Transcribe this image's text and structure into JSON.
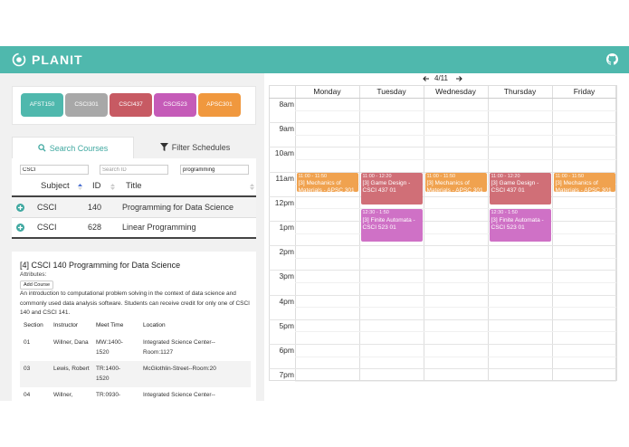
{
  "app": {
    "brand": "PLANIT"
  },
  "chips": [
    {
      "label": "AFST150",
      "color": "#4fb8ad"
    },
    {
      "label": "CSCI301",
      "color": "#a8a8a8"
    },
    {
      "label": "CSCI437",
      "color": "#c75a63"
    },
    {
      "label": "CSCI523",
      "color": "#c55bb8"
    },
    {
      "label": "APSC301",
      "color": "#f0983e"
    }
  ],
  "tabs": {
    "search": "Search Courses",
    "filter": "Filter Schedules"
  },
  "search": {
    "subject_value": "CSCI",
    "id_placeholder": "Search ID",
    "title_value": "programming",
    "columns": {
      "subject": "Subject",
      "id": "ID",
      "title": "Title"
    },
    "rows": [
      {
        "subject": "CSCI",
        "id": "140",
        "title": "Programming for Data Science"
      },
      {
        "subject": "CSCI",
        "id": "628",
        "title": "Linear Programming"
      }
    ]
  },
  "detail": {
    "title": "[4] CSCI 140 Programming for Data Science",
    "attributes_label": "Attributes:",
    "add_button": "Add Course",
    "description": "An introduction to computational problem solving in the context of data science and commonly used data analysis software. Students can receive credit for only one of CSCI 140 and CSCI 141.",
    "section_headers": {
      "section": "Section",
      "instructor": "Instructor",
      "meet": "Meet Time",
      "location": "Location"
    },
    "sections": [
      {
        "section": "01",
        "instructor": "Willner, Dana",
        "meet": "MW:1400-1520",
        "location": "Integrated Science Center--Room:1127"
      },
      {
        "section": "03",
        "instructor": "Lewis, Robert",
        "meet": "TR:1400-1520",
        "location": "McGlothlin-Street--Room:20"
      },
      {
        "section": "04",
        "instructor": "Willner,",
        "meet": "TR:0930-",
        "location": "Integrated Science Center--"
      }
    ]
  },
  "calendar": {
    "date": "4/11",
    "days": [
      "Monday",
      "Tuesday",
      "Wednesday",
      "Thursday",
      "Friday"
    ],
    "times": [
      "8am",
      "9am",
      "10am",
      "11am",
      "12pm",
      "1pm",
      "2pm",
      "3pm",
      "4pm",
      "5pm",
      "6pm",
      "7pm"
    ],
    "events": [
      {
        "day": 0,
        "start": 11.0,
        "end": 11.8333,
        "time": "11:00 - 11:50",
        "name": "[3] Mechanics of Materials - APSC 301",
        "color": "#f0a24f"
      },
      {
        "day": 1,
        "start": 11.0,
        "end": 12.3333,
        "time": "11:00 - 12:20",
        "name": "[3] Game Design - CSCI 437 01",
        "color": "#d06f77"
      },
      {
        "day": 2,
        "start": 11.0,
        "end": 11.8333,
        "time": "11:00 - 11:50",
        "name": "[3] Mechanics of Materials - APSC 301",
        "color": "#f0a24f"
      },
      {
        "day": 3,
        "start": 11.0,
        "end": 12.3333,
        "time": "11:00 - 12:20",
        "name": "[3] Game Design - CSCI 437 01",
        "color": "#d06f77"
      },
      {
        "day": 4,
        "start": 11.0,
        "end": 11.8333,
        "time": "11:00 - 11:50",
        "name": "[3] Mechanics of Materials - APSC 301",
        "color": "#f0a24f"
      },
      {
        "day": 1,
        "start": 12.5,
        "end": 13.8333,
        "time": "12:30 - 1:50",
        "name": "[3] Finite Automata - CSCI 523 01",
        "color": "#cf71c6"
      },
      {
        "day": 3,
        "start": 12.5,
        "end": 13.8333,
        "time": "12:30 - 1:50",
        "name": "[3] Finite Automata - CSCI 523 01",
        "color": "#cf71c6"
      }
    ]
  }
}
